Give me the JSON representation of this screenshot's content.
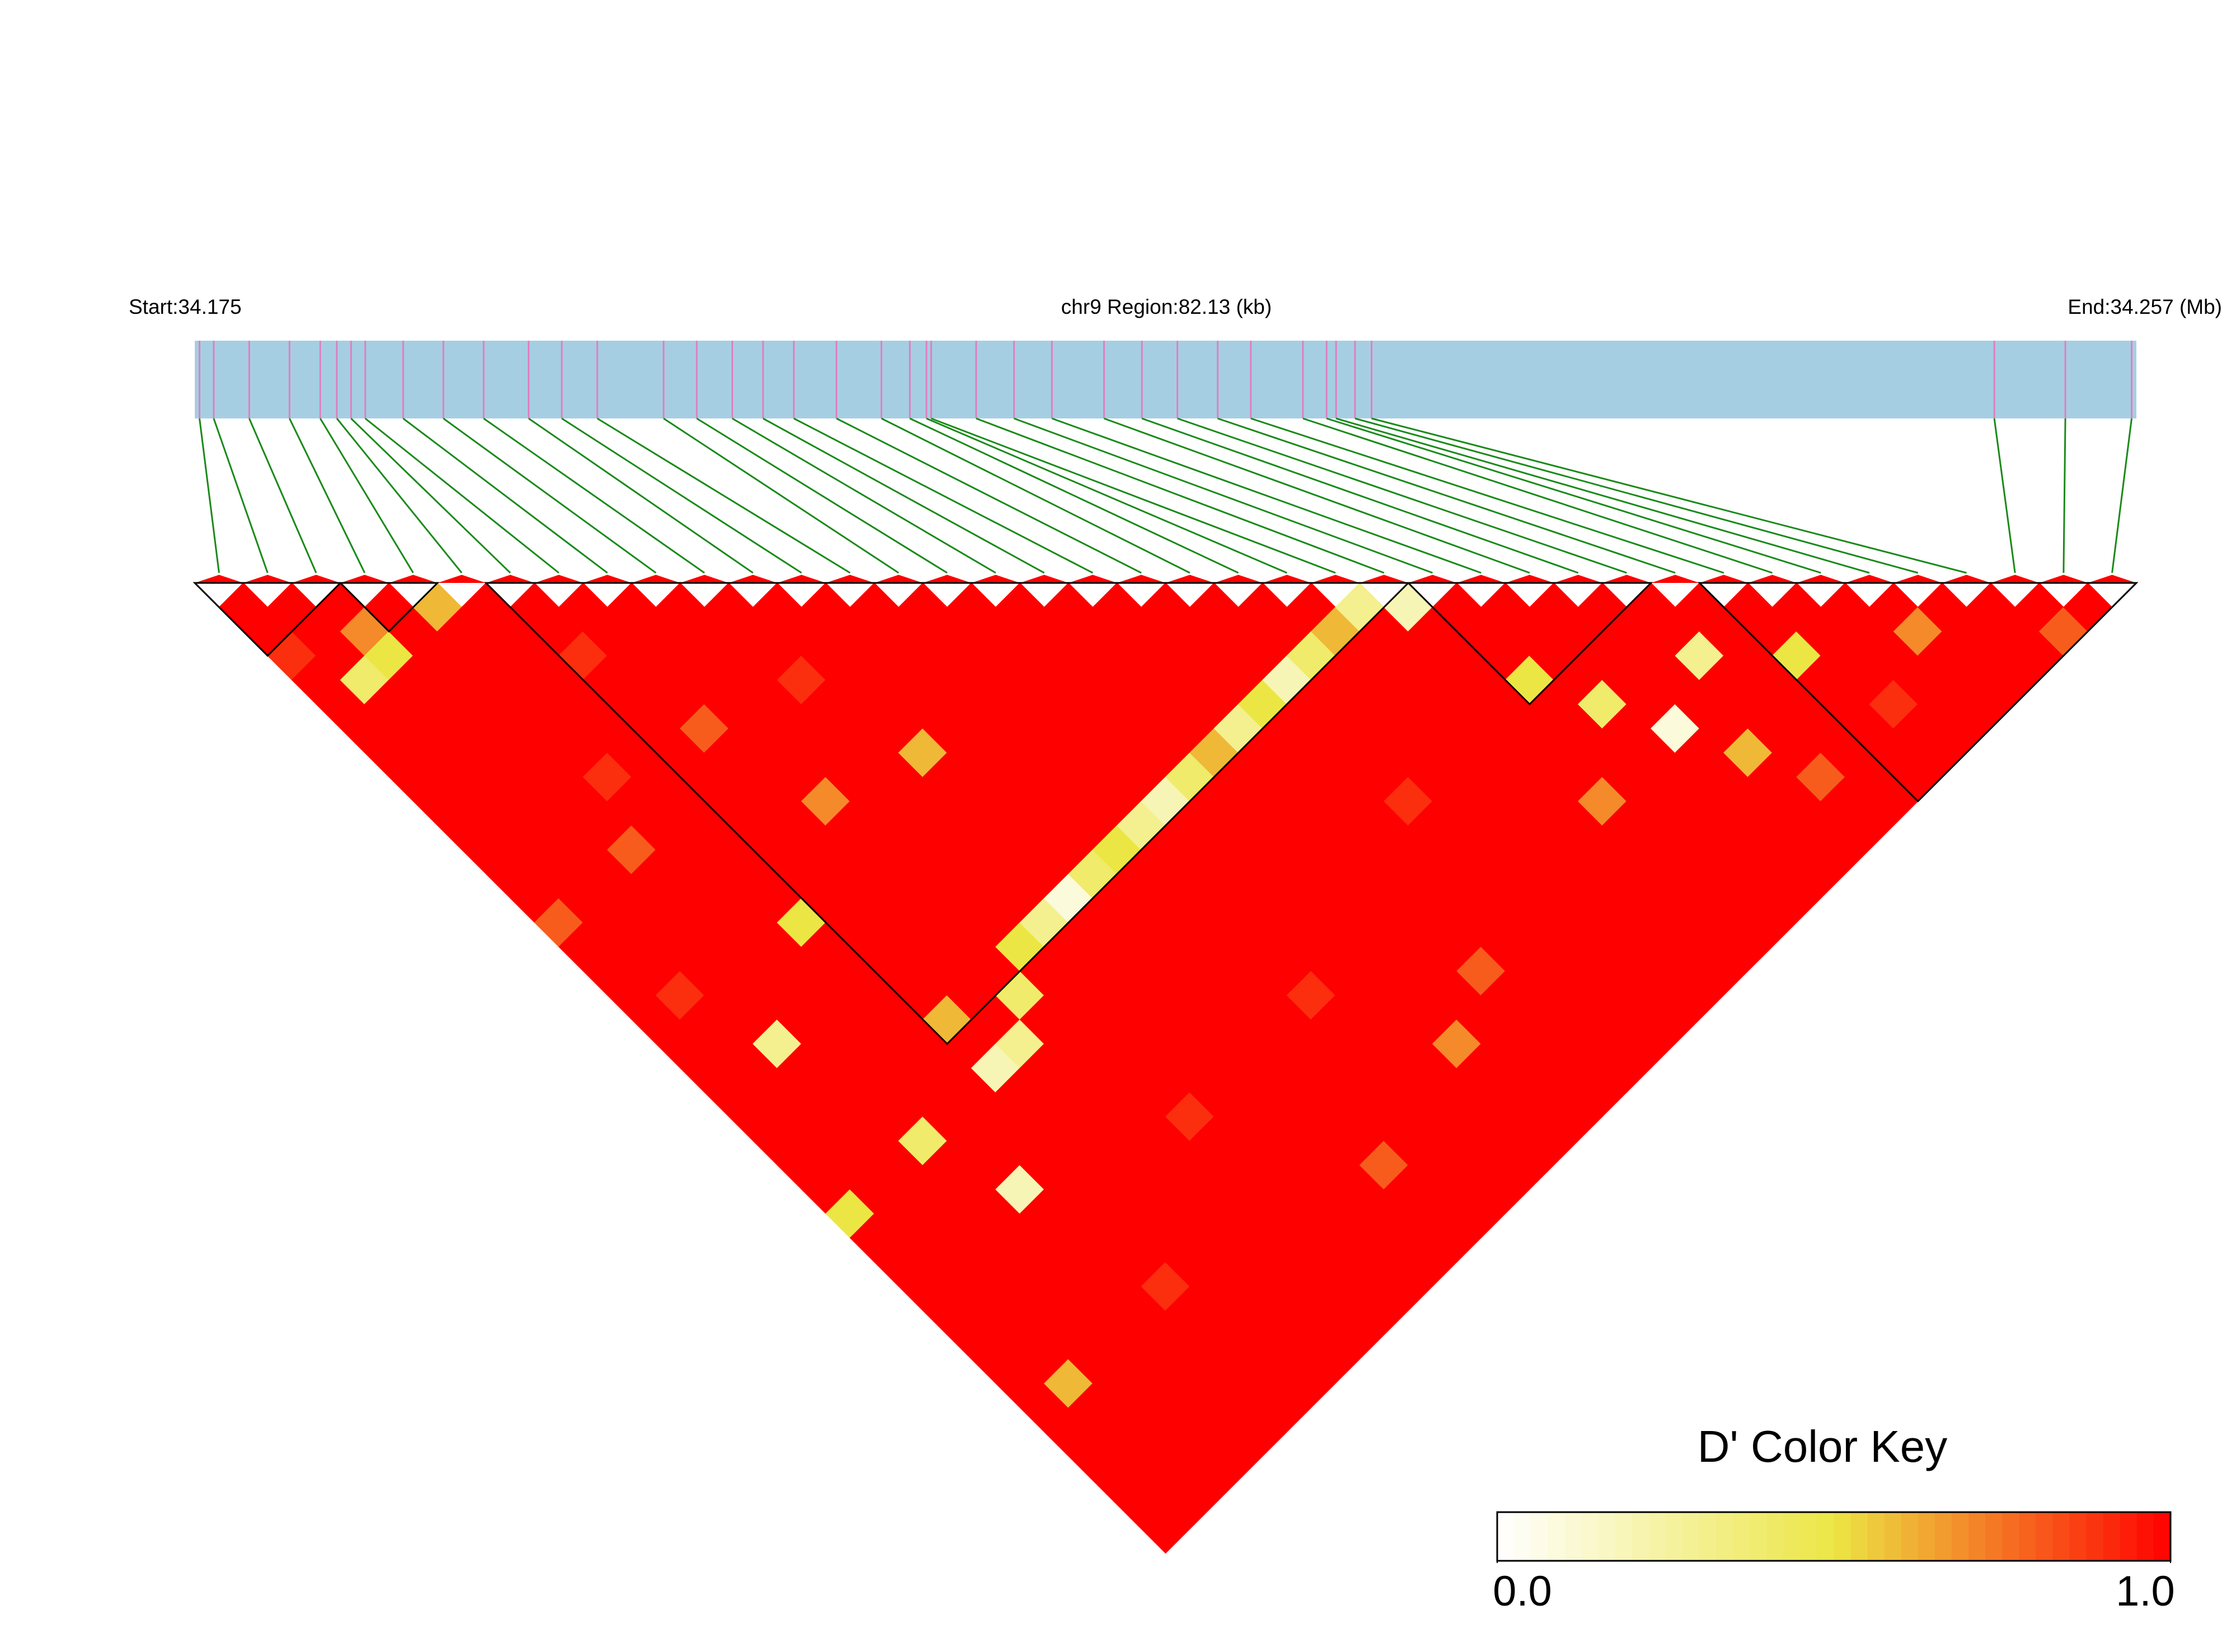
{
  "chart_data": {
    "type": "ld_heatmap",
    "title": "chr9 Region:82.13 (kb)",
    "start_label": "Start:34.175",
    "end_label": "End:34.257 (Mb)",
    "xlim": [
      34.175,
      34.257
    ],
    "positions": [
      34.1752,
      34.1758,
      34.1773,
      34.179,
      34.1803,
      34.181,
      34.1816,
      34.1822,
      34.1838,
      34.1855,
      34.1872,
      34.1891,
      34.1905,
      34.192,
      34.1948,
      34.1962,
      34.1977,
      34.199,
      34.2003,
      34.2021,
      34.204,
      34.2052,
      34.2059,
      34.2061,
      34.208,
      34.2096,
      34.2112,
      34.2134,
      34.215,
      34.2165,
      34.2182,
      34.2196,
      34.2218,
      34.2228,
      34.2232,
      34.224,
      34.2247,
      34.251,
      34.254,
      34.2568
    ],
    "dprime": [
      [
        1,
        1,
        0.9,
        1,
        1,
        1,
        1,
        1,
        1,
        1,
        1,
        1,
        1,
        0.8,
        1,
        1,
        1,
        1,
        1,
        1,
        1,
        1,
        1,
        1,
        1,
        0.5,
        1,
        1,
        1,
        1,
        1,
        1,
        1,
        1,
        1,
        1,
        1,
        1,
        1
      ],
      [
        1,
        1,
        1,
        0.4,
        1,
        1,
        1,
        1,
        1,
        1,
        1,
        1,
        1,
        1,
        1,
        1,
        0.9,
        1,
        1,
        1,
        1,
        1,
        1,
        1,
        1,
        1,
        1,
        1,
        1,
        1,
        1,
        1,
        0.6,
        1,
        1,
        1,
        1,
        1
      ],
      [
        1,
        0.7,
        0.5,
        1,
        1,
        1,
        1,
        1,
        1,
        1,
        1,
        1,
        1,
        1,
        1,
        1,
        1,
        1,
        0.3,
        1,
        1,
        1,
        1,
        1,
        1,
        1,
        1,
        1,
        1,
        1,
        1,
        1,
        1,
        1,
        1,
        1,
        1
      ],
      [
        1,
        1,
        1,
        1,
        1,
        1,
        1,
        1,
        1,
        1,
        0.8,
        1,
        1,
        1,
        1,
        1,
        1,
        1,
        1,
        1,
        1,
        1,
        0.4,
        1,
        1,
        1,
        1,
        1,
        1,
        1,
        1,
        1,
        1,
        1,
        1,
        1
      ],
      [
        0.6,
        1,
        1,
        1,
        1,
        1,
        1,
        0.9,
        1,
        1,
        1,
        1,
        1,
        1,
        1,
        1,
        1,
        1,
        1,
        1,
        1,
        1,
        1,
        1,
        0.2,
        1,
        1,
        1,
        1,
        1,
        1,
        1,
        1,
        1,
        1
      ],
      [
        1,
        1,
        1,
        1,
        1,
        1,
        1,
        1,
        1,
        1,
        1,
        1,
        1,
        0.5,
        1,
        1,
        1,
        1,
        1,
        1,
        1,
        1,
        1,
        1,
        1,
        1,
        1,
        1,
        0.9,
        1,
        1,
        1,
        1,
        1
      ],
      [
        1,
        1,
        0.9,
        1,
        1,
        1,
        1,
        1,
        1,
        1,
        1,
        1,
        1,
        1,
        1,
        1,
        1,
        0.6,
        1,
        0.2,
        1,
        1,
        1,
        1,
        1,
        1,
        1,
        1,
        1,
        1,
        1,
        1,
        1
      ],
      [
        1,
        1,
        1,
        1,
        1,
        0.8,
        1,
        1,
        1,
        1,
        1,
        1,
        1,
        1,
        1,
        1,
        1,
        1,
        0.3,
        1,
        1,
        1,
        1,
        1,
        1,
        1,
        1,
        1,
        1,
        1,
        1,
        1
      ],
      [
        1,
        1,
        1,
        1,
        1,
        1,
        1,
        1,
        0.7,
        1,
        1,
        1,
        1,
        1,
        1,
        1,
        0.4,
        1,
        1,
        1,
        1,
        1,
        1,
        1,
        1,
        1,
        1,
        1,
        1,
        1,
        1
      ],
      [
        1,
        1,
        1,
        1,
        1,
        1,
        1,
        1,
        1,
        1,
        1,
        1,
        1,
        1,
        0.5,
        1,
        1,
        1,
        1,
        1,
        1,
        0.9,
        1,
        1,
        1,
        1,
        1,
        1,
        1,
        1
      ],
      [
        1,
        1,
        1,
        0.9,
        1,
        1,
        1,
        1,
        1,
        1,
        1,
        1,
        1,
        0.3,
        1,
        1,
        1,
        1,
        1,
        1,
        1,
        1,
        1,
        1,
        1,
        1,
        1,
        1,
        1
      ],
      [
        1,
        1,
        1,
        1,
        1,
        1,
        0.6,
        1,
        1,
        1,
        1,
        1,
        0.1,
        1,
        1,
        1,
        1,
        1,
        1,
        1,
        1,
        1,
        1,
        1,
        1,
        1,
        1,
        1
      ],
      [
        1,
        1,
        1,
        1,
        1,
        1,
        1,
        1,
        1,
        1,
        1,
        0.4,
        1,
        1,
        1,
        1,
        1,
        1,
        1,
        1,
        1,
        1,
        1,
        0.8,
        1,
        1,
        1
      ],
      [
        1,
        1,
        1,
        1,
        1,
        1,
        1,
        1,
        1,
        1,
        0.5,
        1,
        1,
        1,
        1,
        1,
        1,
        1,
        1,
        1,
        1,
        1,
        1,
        1,
        1,
        1
      ],
      [
        1,
        1,
        1,
        1,
        1,
        1,
        1,
        1,
        1,
        0.3,
        1,
        1,
        1,
        1,
        1,
        1,
        0.9,
        1,
        1,
        1,
        1,
        1,
        1,
        1,
        1
      ],
      [
        1,
        1,
        1,
        1,
        1,
        1,
        1,
        1,
        0.2,
        1,
        1,
        1,
        1,
        1,
        1,
        1,
        1,
        1,
        1,
        1,
        1,
        1,
        1,
        1
      ],
      [
        1,
        1,
        1,
        1,
        1,
        1,
        1,
        0.4,
        1,
        1,
        1,
        1,
        1,
        1,
        1,
        1,
        1,
        1,
        0.7,
        1,
        1,
        1,
        1
      ],
      [
        1,
        1,
        1,
        1,
        1,
        1,
        0.6,
        1,
        1,
        1,
        1,
        1,
        1,
        1,
        1,
        1,
        1,
        1,
        1,
        1,
        1,
        1
      ],
      [
        1,
        1,
        1,
        1,
        1,
        0.3,
        1,
        1,
        1,
        1,
        1,
        1,
        1,
        1,
        1,
        0.8,
        1,
        1,
        1,
        1,
        1
      ],
      [
        1,
        1,
        1,
        1,
        0.5,
        1,
        1,
        1,
        1,
        1,
        1,
        1,
        1,
        1,
        1,
        1,
        1,
        1,
        1,
        1
      ],
      [
        1,
        1,
        1,
        0.2,
        1,
        1,
        1,
        1,
        0.9,
        1,
        1,
        1,
        1,
        1,
        1,
        1,
        1,
        1,
        1
      ],
      [
        1,
        1,
        0.4,
        1,
        1,
        1,
        1,
        1,
        1,
        1,
        1,
        1,
        1,
        1,
        1,
        1,
        1,
        1
      ],
      [
        1,
        0.6,
        1,
        1,
        1,
        1,
        1,
        1,
        1,
        1,
        1,
        1,
        1,
        1,
        1,
        1,
        1
      ],
      [
        0.3,
        1,
        1,
        1,
        1,
        1,
        1,
        1,
        1,
        1,
        1,
        1,
        1,
        1,
        1,
        1
      ],
      [
        0.2,
        1,
        1,
        1,
        1,
        1,
        1,
        1,
        0.7,
        1,
        1,
        1,
        1,
        1,
        1
      ],
      [
        1,
        1,
        1,
        0.5,
        1,
        1,
        1,
        1,
        1,
        1,
        1,
        1,
        1,
        1
      ],
      [
        1,
        1,
        1,
        1,
        0.4,
        1,
        1,
        1,
        1,
        1,
        1,
        1,
        1
      ],
      [
        1,
        1,
        1,
        1,
        1,
        0.1,
        1,
        1,
        1,
        1,
        1,
        1
      ],
      [
        1,
        1,
        1,
        1,
        1,
        1,
        0.6,
        1,
        1,
        1,
        1
      ],
      [
        1,
        1,
        0.3,
        1,
        1,
        1,
        1,
        0.8,
        1,
        1
      ],
      [
        1,
        1,
        1,
        1,
        1,
        1,
        1,
        1,
        1
      ],
      [
        1,
        1,
        0.5,
        1,
        1,
        1,
        1,
        1
      ],
      [
        1,
        1,
        1,
        1,
        0.9,
        1,
        1
      ],
      [
        1,
        1,
        1,
        1,
        1,
        1
      ],
      [
        1,
        0.7,
        1,
        1,
        1
      ],
      [
        1,
        1,
        1,
        1
      ],
      [
        1,
        1,
        1
      ],
      [
        1,
        0.8
      ],
      [
        1
      ]
    ],
    "blocks": [
      [
        0,
        2
      ],
      [
        3,
        4
      ],
      [
        6,
        24
      ],
      [
        25,
        29
      ],
      [
        31,
        39
      ]
    ],
    "color_scale": [
      "#ffffff",
      "#ece645",
      "#ff0000"
    ],
    "key_title": "D' Color Key",
    "key_ticks": [
      {
        "value": 0,
        "label": "0.0"
      },
      {
        "value": 1,
        "label": "1.0"
      }
    ],
    "bar_color": "#a6cee3",
    "snp_color": "#e07fc0",
    "link_color": "#1a8a1a",
    "block_color": "#000000"
  }
}
